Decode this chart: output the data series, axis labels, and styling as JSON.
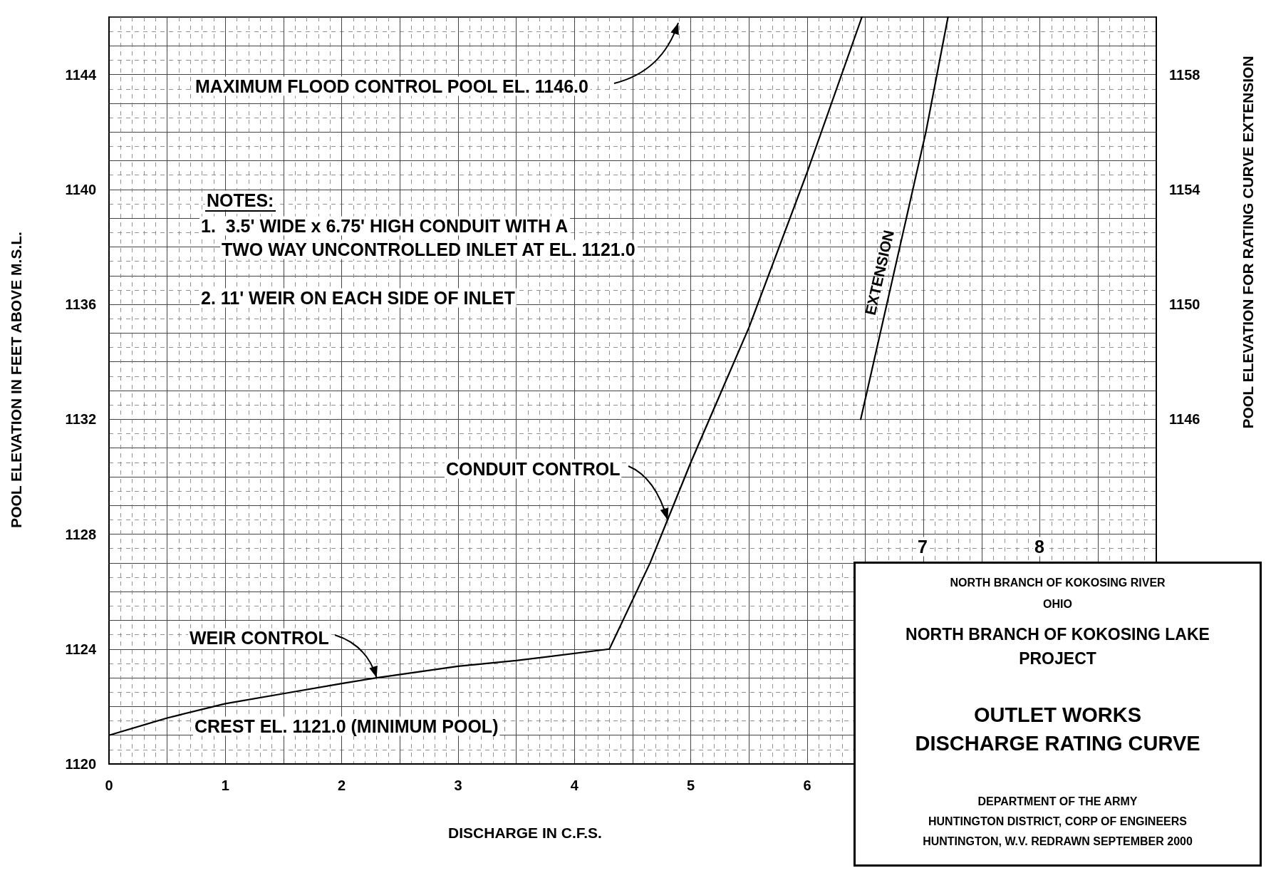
{
  "chart_data": {
    "type": "line",
    "title": "OUTLET WORKS DISCHARGE RATING CURVE",
    "xlabel": "DISCHARGE IN C.F.S.",
    "ylabel": "POOL ELEVATION IN FEET ABOVE M.S.L.",
    "y2label": "POOL ELEVATION FOR RATING CURVE EXTENSION",
    "xlim": [
      0,
      9
    ],
    "xticks": [
      0,
      1,
      2,
      3,
      4,
      5,
      6
    ],
    "ylim": [
      1120,
      1146
    ],
    "yticks": [
      1120,
      1124,
      1128,
      1132,
      1136,
      1140,
      1144
    ],
    "y2lim": [
      1134,
      1160
    ],
    "y2ticks": [
      1146,
      1150,
      1154,
      1158
    ],
    "grid": true,
    "legend": false,
    "marker": "none",
    "line_style": "solid",
    "series": [
      {
        "color": "#000000",
        "x": [
          0,
          0.5,
          1,
          1.5,
          2,
          2.3,
          3,
          3.5,
          4.3,
          4.65,
          4.85,
          5.0,
          5.5,
          6.0,
          6.47
        ],
        "values": [
          1121,
          1121.6,
          1122.1,
          1122.45,
          1122.8,
          1123.0,
          1123.4,
          1123.6,
          1124.0,
          1127,
          1129,
          1130.5,
          1135.2,
          1140.6,
          1146
        ]
      },
      {
        "name": "EXTENSION",
        "color": "#000000",
        "axis": "y2",
        "x": [
          6.46,
          7.02,
          7.21
        ],
        "values": [
          1146,
          1156,
          1160
        ]
      }
    ],
    "annotations": [
      "MAXIMUM FLOOD CONTROL POOL EL. 1146.0",
      "NOTES:",
      "1.  3.5' WIDE x 6.75' HIGH CONDUIT WITH A",
      "TWO WAY UNCONTROLLED INLET AT EL. 1121.0",
      "2. 11' WEIR ON EACH SIDE OF INLET",
      {
        "text": "CONDUIT CONTROL",
        "x": 4.8,
        "y": 1128.5
      },
      {
        "text": "WEIR CONTROL",
        "x": 2.3,
        "y": 1123.0
      },
      "CREST EL. 1121.0 (MINIMUM POOL)",
      "7",
      "8",
      "NORTH BRANCH OF KOKOSING RIVER",
      "OHIO",
      "NORTH BRANCH OF KOKOSING LAKE PROJECT",
      "DEPARTMENT OF THE ARMY",
      "HUNTINGTON DISTRICT, CORP OF ENGINEERS",
      "HUNTINGTON, W.V.  REDRAWN SEPTEMBER 2000"
    ]
  }
}
